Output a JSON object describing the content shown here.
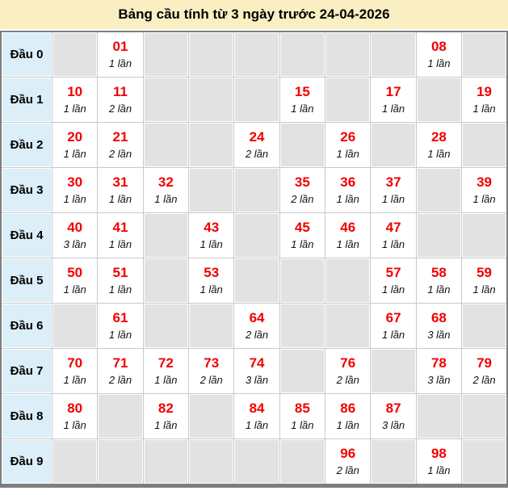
{
  "title": "Bảng cầu tính từ 3 ngày trước 24-04-2026",
  "colors": {
    "title_bg": "#FAEFC3",
    "row_header_bg": "#DCEEF8",
    "empty_cell_bg": "#E2E2E2",
    "filled_cell_bg": "#FFFFFF",
    "number_color": "#F20000",
    "count_color": "#111111",
    "outer_border": "#7E7E7E",
    "grid_line": "#C9C9C9"
  },
  "chart_data": {
    "type": "table",
    "title": "Bảng cầu tính từ 3 ngày trước 24-04-2026",
    "columns_per_row": 10,
    "rows": [
      {
        "label": "Đầu 0",
        "cells": [
          null,
          {
            "number": "01",
            "count": "1 lần"
          },
          null,
          null,
          null,
          null,
          null,
          null,
          {
            "number": "08",
            "count": "1 lần"
          },
          null
        ]
      },
      {
        "label": "Đầu 1",
        "cells": [
          {
            "number": "10",
            "count": "1 lần"
          },
          {
            "number": "11",
            "count": "2 lần"
          },
          null,
          null,
          null,
          {
            "number": "15",
            "count": "1 lần"
          },
          null,
          {
            "number": "17",
            "count": "1 lần"
          },
          null,
          {
            "number": "19",
            "count": "1 lần"
          }
        ]
      },
      {
        "label": "Đầu 2",
        "cells": [
          {
            "number": "20",
            "count": "1 lần"
          },
          {
            "number": "21",
            "count": "2 lần"
          },
          null,
          null,
          {
            "number": "24",
            "count": "2 lần"
          },
          null,
          {
            "number": "26",
            "count": "1 lần"
          },
          null,
          {
            "number": "28",
            "count": "1 lần"
          },
          null
        ]
      },
      {
        "label": "Đầu 3",
        "cells": [
          {
            "number": "30",
            "count": "1 lần"
          },
          {
            "number": "31",
            "count": "1 lần"
          },
          {
            "number": "32",
            "count": "1 lần"
          },
          null,
          null,
          {
            "number": "35",
            "count": "2 lần"
          },
          {
            "number": "36",
            "count": "1 lần"
          },
          {
            "number": "37",
            "count": "1 lần"
          },
          null,
          {
            "number": "39",
            "count": "1 lần"
          }
        ]
      },
      {
        "label": "Đầu 4",
        "cells": [
          {
            "number": "40",
            "count": "3 lần"
          },
          {
            "number": "41",
            "count": "1 lần"
          },
          null,
          {
            "number": "43",
            "count": "1 lần"
          },
          null,
          {
            "number": "45",
            "count": "1 lần"
          },
          {
            "number": "46",
            "count": "1 lần"
          },
          {
            "number": "47",
            "count": "1 lần"
          },
          null,
          null
        ]
      },
      {
        "label": "Đầu 5",
        "cells": [
          {
            "number": "50",
            "count": "1 lần"
          },
          {
            "number": "51",
            "count": "1 lần"
          },
          null,
          {
            "number": "53",
            "count": "1 lần"
          },
          null,
          null,
          null,
          {
            "number": "57",
            "count": "1 lần"
          },
          {
            "number": "58",
            "count": "1 lần"
          },
          {
            "number": "59",
            "count": "1 lần"
          }
        ]
      },
      {
        "label": "Đầu 6",
        "cells": [
          null,
          {
            "number": "61",
            "count": "1 lần"
          },
          null,
          null,
          {
            "number": "64",
            "count": "2 lần"
          },
          null,
          null,
          {
            "number": "67",
            "count": "1 lần"
          },
          {
            "number": "68",
            "count": "3 lần"
          },
          null
        ]
      },
      {
        "label": "Đầu 7",
        "cells": [
          {
            "number": "70",
            "count": "1 lần"
          },
          {
            "number": "71",
            "count": "2 lần"
          },
          {
            "number": "72",
            "count": "1 lần"
          },
          {
            "number": "73",
            "count": "2 lần"
          },
          {
            "number": "74",
            "count": "3 lần"
          },
          null,
          {
            "number": "76",
            "count": "2 lần"
          },
          null,
          {
            "number": "78",
            "count": "3 lần"
          },
          {
            "number": "79",
            "count": "2 lần"
          }
        ]
      },
      {
        "label": "Đầu 8",
        "cells": [
          {
            "number": "80",
            "count": "1 lần"
          },
          null,
          {
            "number": "82",
            "count": "1 lần"
          },
          null,
          {
            "number": "84",
            "count": "1 lần"
          },
          {
            "number": "85",
            "count": "1 lần"
          },
          {
            "number": "86",
            "count": "1 lần"
          },
          {
            "number": "87",
            "count": "3 lần"
          },
          null,
          null
        ]
      },
      {
        "label": "Đầu 9",
        "cells": [
          null,
          null,
          null,
          null,
          null,
          null,
          {
            "number": "96",
            "count": "2 lần"
          },
          null,
          {
            "number": "98",
            "count": "1 lần"
          },
          null
        ]
      }
    ]
  }
}
